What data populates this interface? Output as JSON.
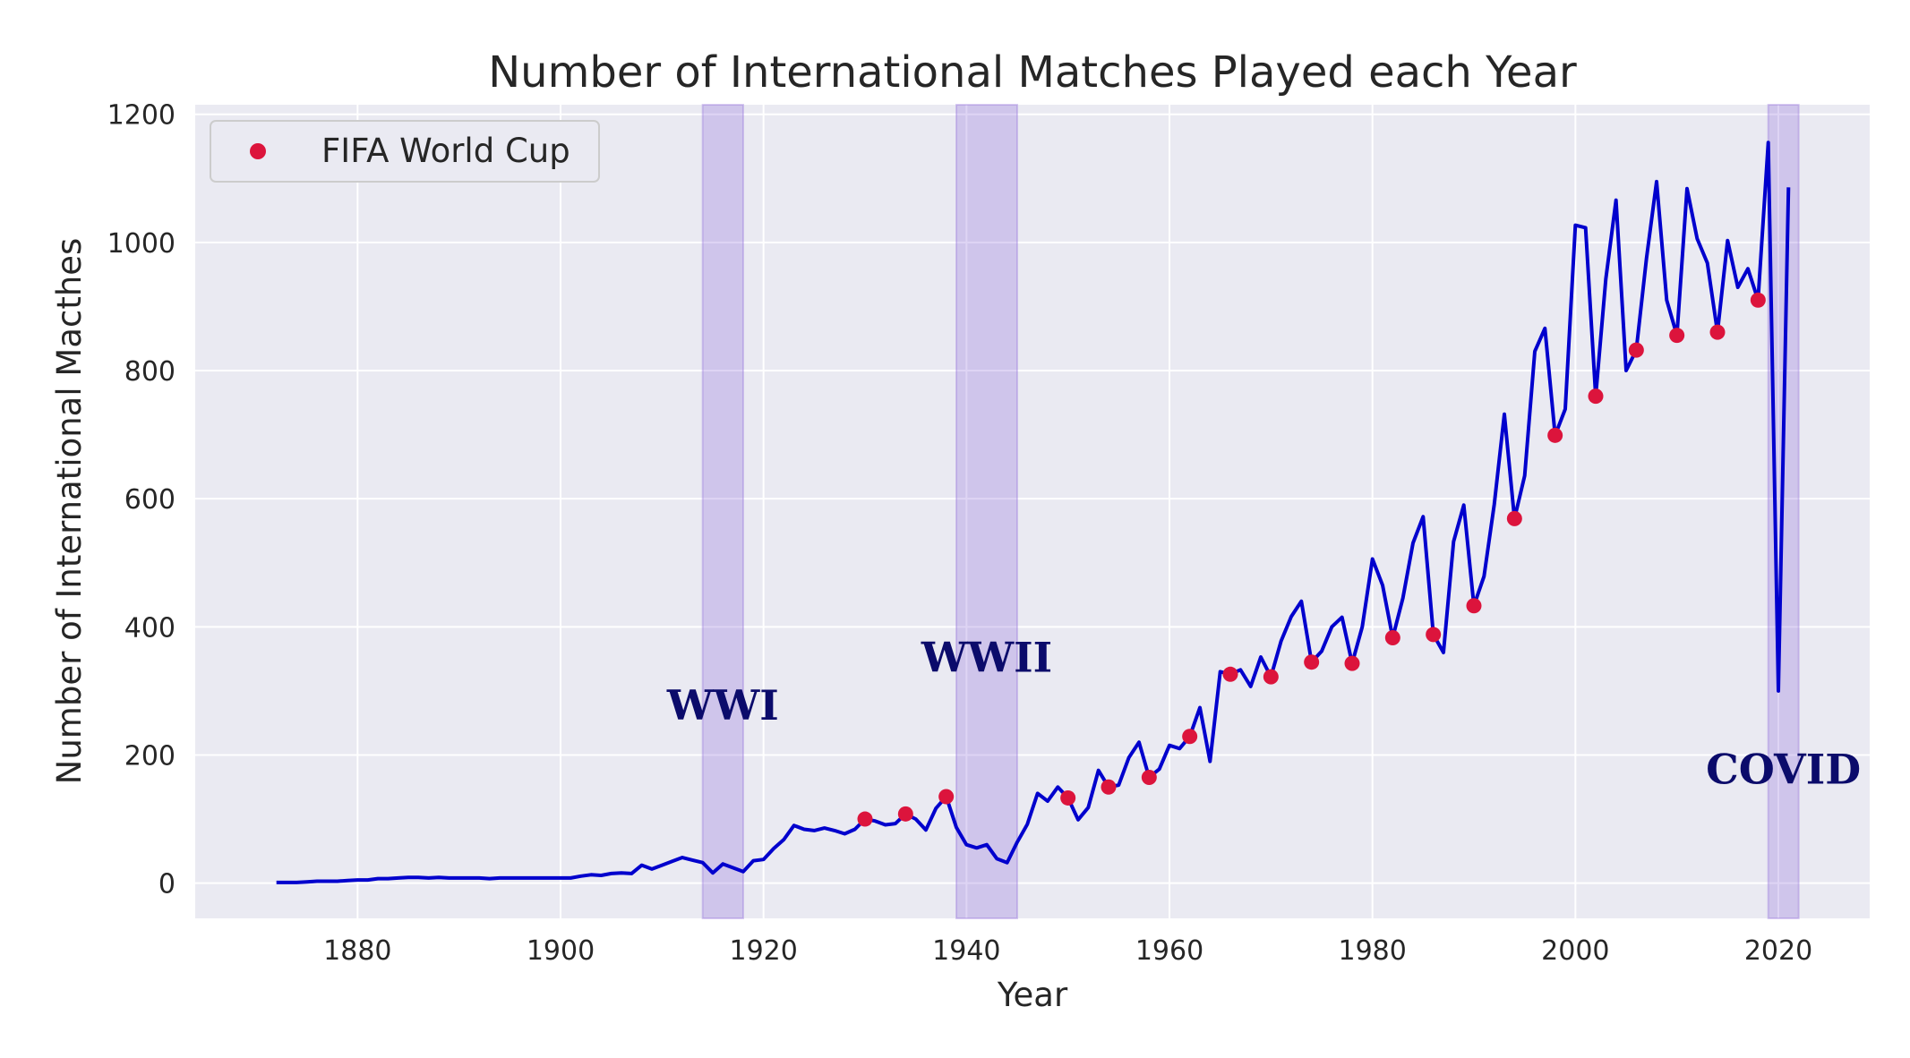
{
  "chart_data": {
    "type": "line",
    "title": "Number of International Matches Played each Year",
    "xlabel": "Year",
    "ylabel": "Number of International Macthes",
    "xlim": [
      1864,
      2029
    ],
    "ylim": [
      -55,
      1215
    ],
    "xticks": [
      1880,
      1900,
      1920,
      1940,
      1960,
      1980,
      2000,
      2020
    ],
    "yticks": [
      0,
      200,
      400,
      600,
      800,
      1000,
      1200
    ],
    "grid": true,
    "legend": "top-left",
    "colors": {
      "background": "#eaeaf2",
      "grid": "#ffffff",
      "line": "#0000cd",
      "marker": "#dc143c",
      "shade": "#9370db",
      "annotation": "#0b0b6b"
    },
    "series": [
      {
        "kind": "line",
        "x": [
          1872,
          1873,
          1874,
          1875,
          1876,
          1877,
          1878,
          1879,
          1880,
          1881,
          1882,
          1883,
          1884,
          1885,
          1886,
          1887,
          1888,
          1889,
          1890,
          1891,
          1892,
          1893,
          1894,
          1895,
          1896,
          1897,
          1898,
          1899,
          1900,
          1901,
          1902,
          1903,
          1904,
          1905,
          1906,
          1907,
          1908,
          1909,
          1910,
          1911,
          1912,
          1913,
          1914,
          1915,
          1916,
          1917,
          1918,
          1919,
          1920,
          1921,
          1922,
          1923,
          1924,
          1925,
          1926,
          1927,
          1928,
          1929,
          1930,
          1931,
          1932,
          1933,
          1934,
          1935,
          1936,
          1937,
          1938,
          1939,
          1940,
          1941,
          1942,
          1943,
          1944,
          1945,
          1946,
          1947,
          1948,
          1949,
          1950,
          1951,
          1952,
          1953,
          1954,
          1955,
          1956,
          1957,
          1958,
          1959,
          1960,
          1961,
          1962,
          1963,
          1964,
          1965,
          1966,
          1967,
          1968,
          1969,
          1970,
          1971,
          1972,
          1973,
          1974,
          1975,
          1976,
          1977,
          1978,
          1979,
          1980,
          1981,
          1982,
          1983,
          1984,
          1985,
          1986,
          1987,
          1988,
          1989,
          1990,
          1991,
          1992,
          1993,
          1994,
          1995,
          1996,
          1997,
          1998,
          1999,
          2000,
          2001,
          2002,
          2003,
          2004,
          2005,
          2006,
          2007,
          2008,
          2009,
          2010,
          2011,
          2012,
          2013,
          2014,
          2015,
          2016,
          2017,
          2018,
          2019,
          2020,
          2021
        ],
        "y": [
          1,
          1,
          1,
          2,
          3,
          3,
          3,
          4,
          5,
          5,
          7,
          7,
          8,
          9,
          9,
          8,
          9,
          8,
          8,
          8,
          8,
          7,
          8,
          8,
          8,
          8,
          8,
          8,
          8,
          8,
          11,
          13,
          12,
          15,
          16,
          15,
          28,
          22,
          28,
          34,
          40,
          36,
          32,
          16,
          30,
          24,
          18,
          35,
          37,
          54,
          68,
          90,
          84,
          82,
          86,
          82,
          77,
          84,
          100,
          97,
          91,
          93,
          108,
          100,
          83,
          117,
          135,
          87,
          60,
          55,
          60,
          38,
          32,
          64,
          92,
          140,
          128,
          150,
          133,
          99,
          118,
          176,
          150,
          153,
          196,
          220,
          165,
          178,
          215,
          210,
          229,
          274,
          190,
          330,
          326,
          333,
          307,
          353,
          322,
          378,
          416,
          440,
          345,
          362,
          400,
          415,
          343,
          400,
          506,
          465,
          383,
          445,
          531,
          572,
          388,
          360,
          533,
          590,
          433,
          479,
          591,
          732,
          569,
          636,
          830,
          866,
          699,
          740,
          1027,
          1023,
          760,
          943,
          1066,
          800,
          832,
          975,
          1095,
          910,
          855,
          1084,
          1006,
          968,
          860,
          1003,
          930,
          959,
          910,
          1156,
          300,
          1086
        ]
      },
      {
        "kind": "scatter",
        "name": "FIFA World Cup",
        "x": [
          1930,
          1934,
          1938,
          1950,
          1954,
          1958,
          1962,
          1966,
          1970,
          1974,
          1978,
          1982,
          1986,
          1990,
          1994,
          1998,
          2002,
          2006,
          2010,
          2014,
          2018
        ],
        "y": [
          100,
          108,
          135,
          133,
          150,
          165,
          229,
          326,
          322,
          345,
          343,
          383,
          388,
          433,
          569,
          699,
          760,
          832,
          855,
          860,
          910
        ]
      }
    ],
    "spans": [
      {
        "label": "WWI",
        "start": 1914,
        "end": 1918,
        "label_x": 1916,
        "label_y": 255
      },
      {
        "label": "WWII",
        "start": 1939,
        "end": 1945,
        "label_x": 1942,
        "label_y": 330
      },
      {
        "label": "COVID",
        "start": 2019,
        "end": 2022,
        "label_x": 2020.5,
        "label_y": 155
      }
    ]
  }
}
